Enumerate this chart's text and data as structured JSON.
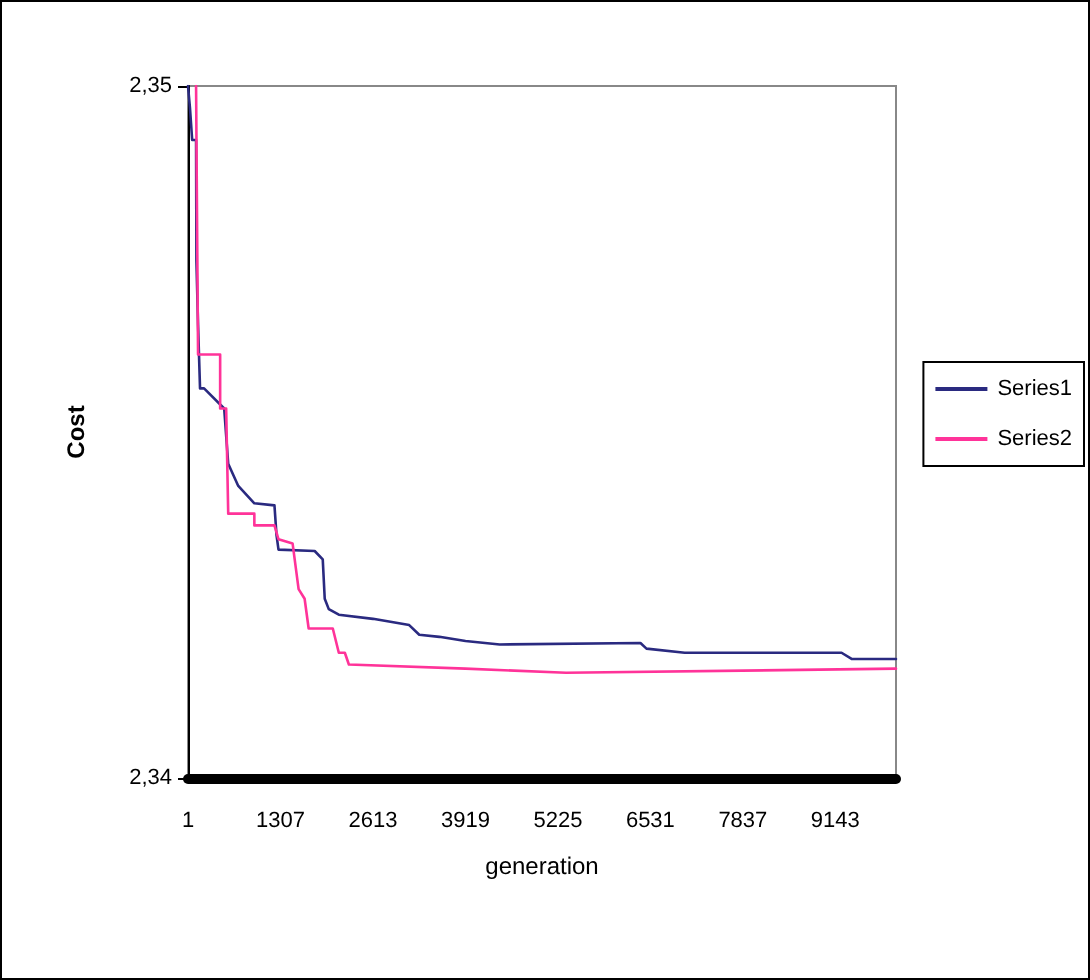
{
  "chart_data": {
    "type": "line",
    "xlabel": "generation",
    "ylabel": "Cost",
    "xlim": [
      1,
      10000
    ],
    "xticks": [
      1,
      1307,
      2613,
      3919,
      5225,
      6531,
      7837,
      9143
    ],
    "ylim": [
      2.34,
      2.35
    ],
    "yticks": [
      {
        "value": 2.34,
        "label": "2,34"
      },
      {
        "value": 2.35,
        "label": "2,35"
      }
    ],
    "grid": false,
    "legend": "right",
    "marker": "none",
    "line_style": "solid",
    "series": [
      {
        "name": "Series1",
        "color": "#2a2a80",
        "x": [
          1,
          29,
          60,
          115,
          120,
          143,
          171,
          228,
          512,
          569,
          711,
          938,
          1222,
          1251,
          1279,
          1790,
          1904,
          1932,
          1989,
          2131,
          2614,
          3125,
          3267,
          3551,
          3920,
          4403,
          6391,
          6476,
          7016,
          9231,
          9373,
          10000
        ],
        "values": [
          2.35,
          2.34968,
          2.34922,
          2.34922,
          2.34747,
          2.34655,
          2.34563,
          2.34563,
          2.34534,
          2.34454,
          2.34422,
          2.34397,
          2.34394,
          2.34351,
          2.3433,
          2.34328,
          2.34316,
          2.34259,
          2.34244,
          2.34236,
          2.3423,
          2.34221,
          2.34207,
          2.34204,
          2.34198,
          2.34193,
          2.34195,
          2.34187,
          2.34181,
          2.34181,
          2.34172,
          2.34172
        ]
      },
      {
        "name": "Series2",
        "color": "#ff3399",
        "x": [
          115,
          143,
          455,
          455,
          540,
          569,
          938,
          938,
          1222,
          1279,
          1478,
          1563,
          1648,
          1705,
          2046,
          2131,
          2216,
          2273,
          3920,
          5340,
          10000
        ],
        "values": [
          2.35,
          2.34612,
          2.34612,
          2.34534,
          2.34534,
          2.34382,
          2.34382,
          2.34365,
          2.34365,
          2.34345,
          2.34339,
          2.34273,
          2.34259,
          2.34216,
          2.34216,
          2.34181,
          2.34181,
          2.34164,
          2.34158,
          2.34152,
          2.34158
        ]
      }
    ]
  }
}
